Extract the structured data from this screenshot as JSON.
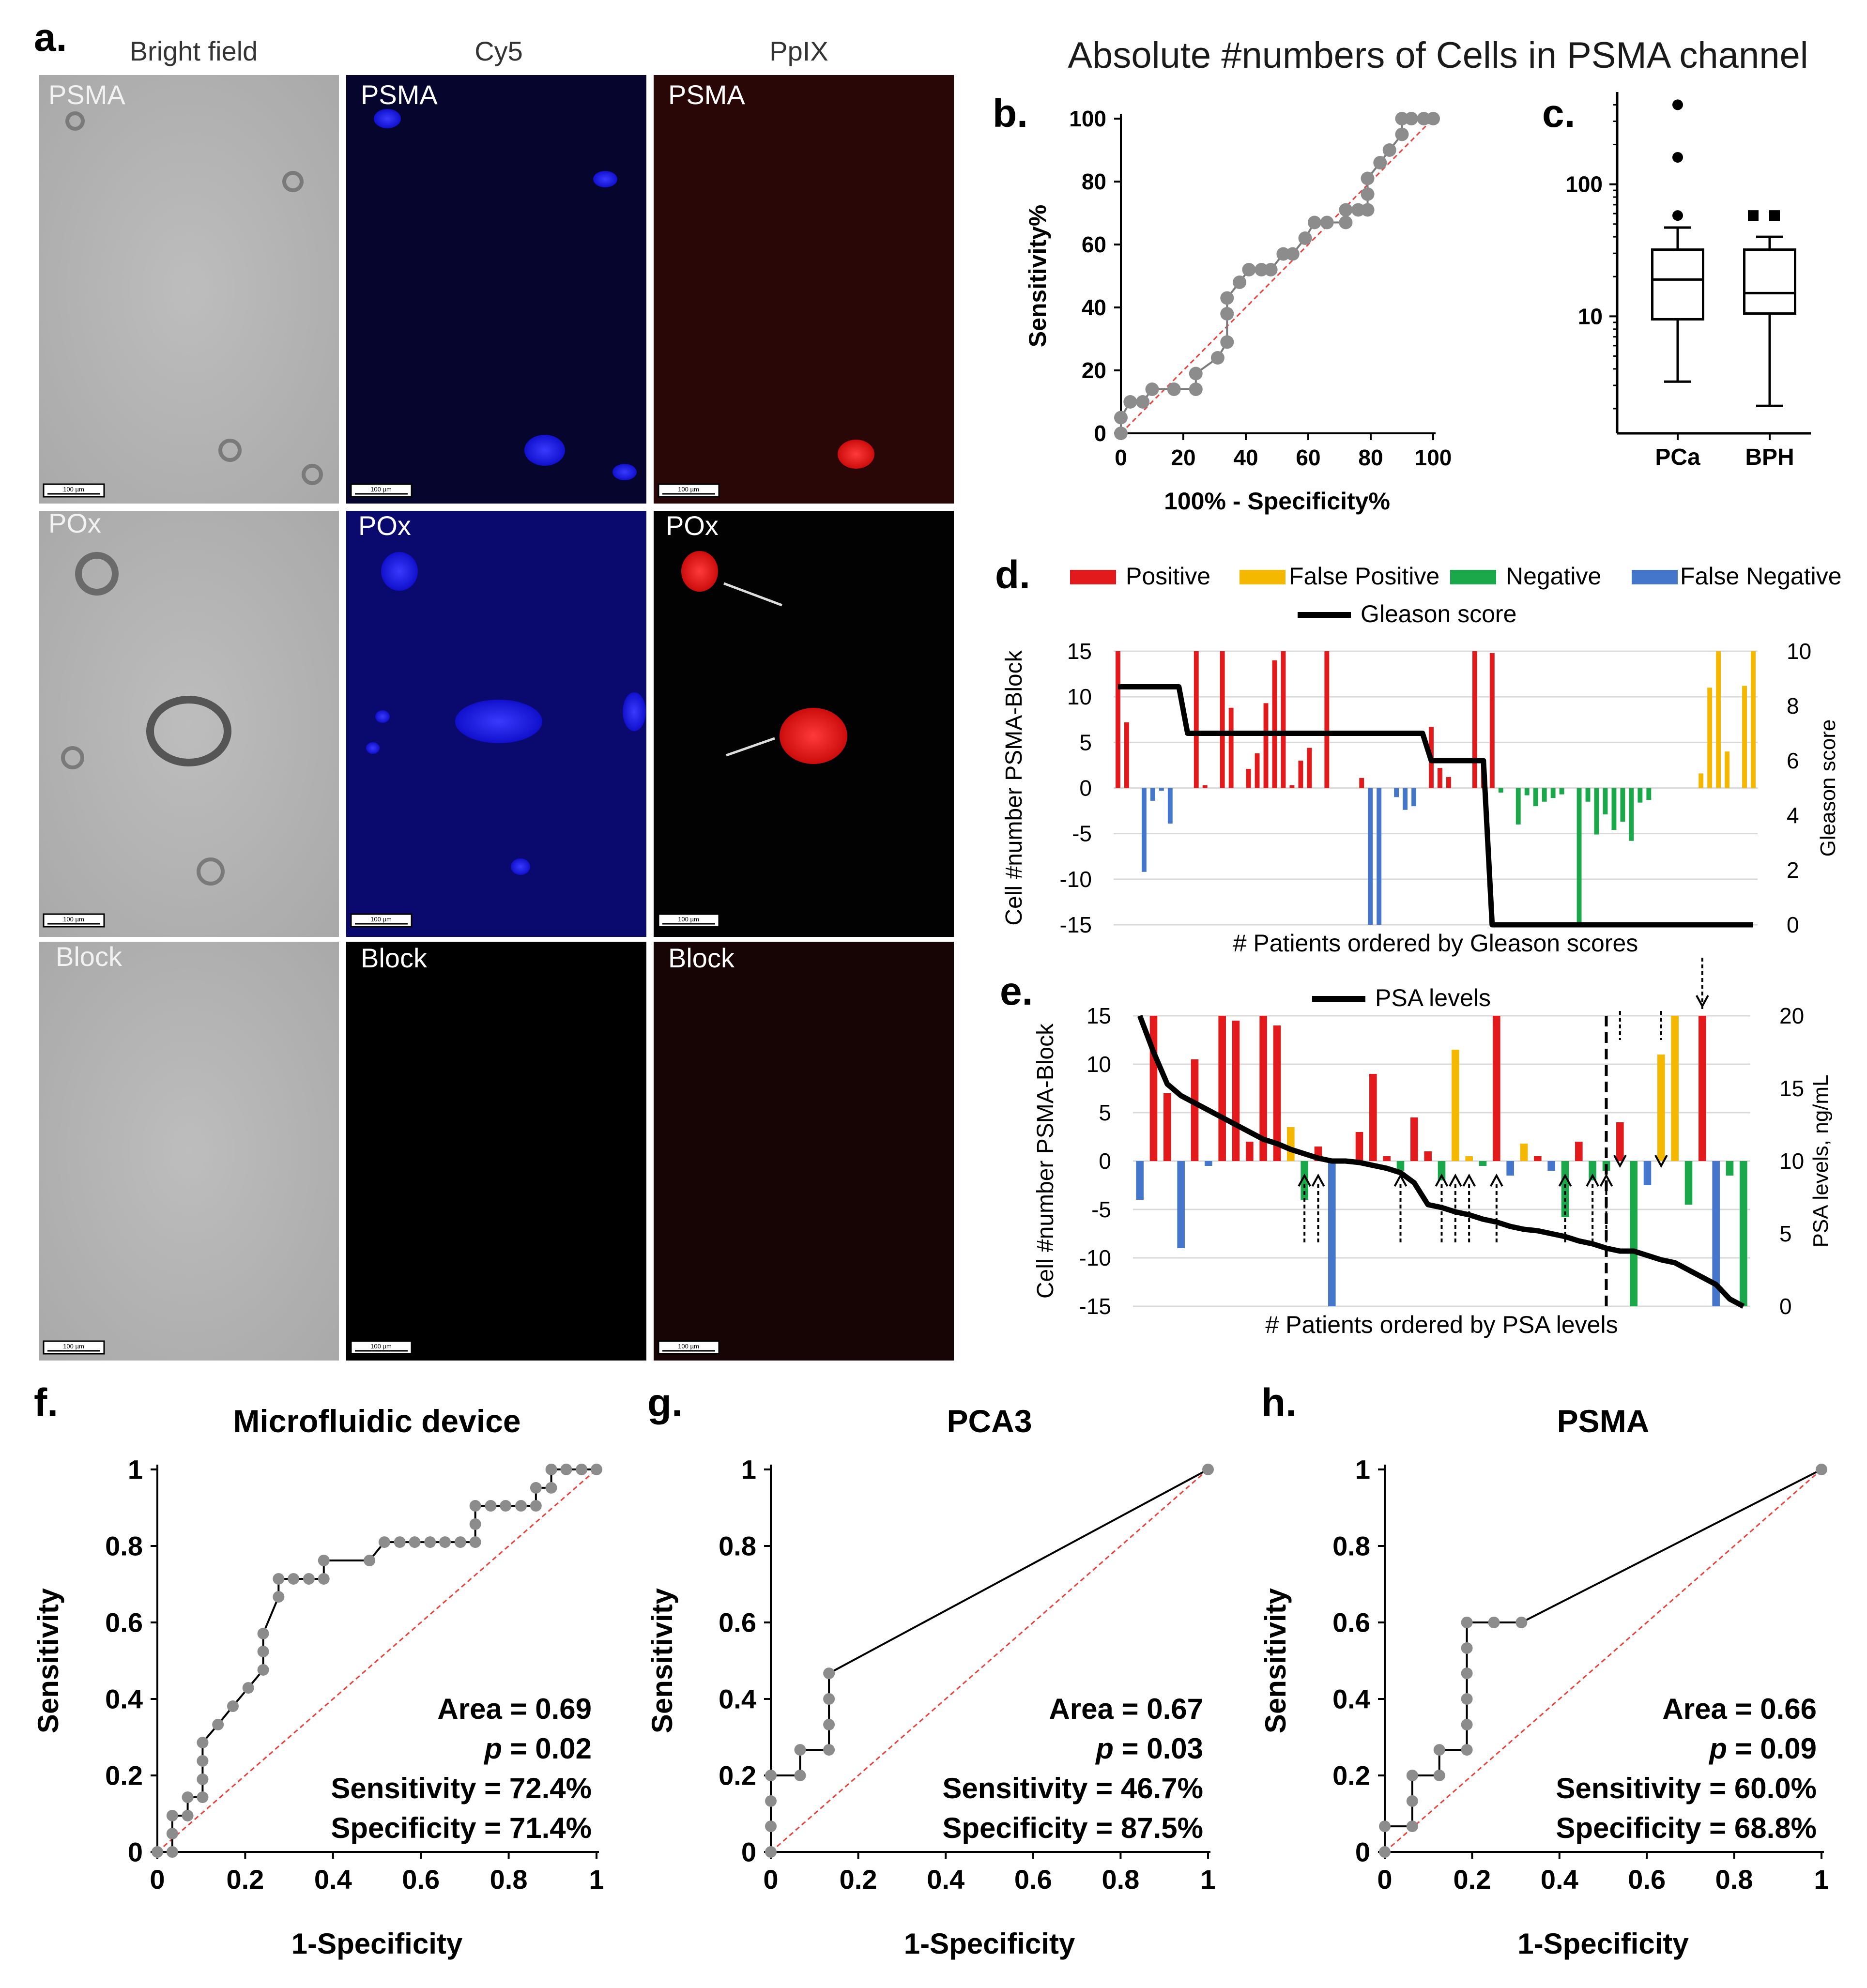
{
  "colors": {
    "positive": "#e31a1c",
    "false_positive": "#f5b800",
    "negative": "#1aa84a",
    "false_negative": "#4477cc",
    "line": "#000000",
    "ref": "#e8433d",
    "marker": "#8c8c8c",
    "cy5": "#1a1aff",
    "ppix": "#ff2020"
  },
  "panel_a": {
    "letter": "a.",
    "columns": [
      "Bright field",
      "Cy5",
      "PpIX"
    ],
    "rows": [
      "PSMA",
      "POx",
      "Block"
    ],
    "scale_bar": "100 µm"
  },
  "top_title": "Absolute #numbers of Cells in PSMA channel",
  "legend": {
    "positive": "Positive",
    "false_positive": "False Positive",
    "negative": "Negative",
    "false_negative": "False Negative",
    "gleason": "Gleason score",
    "psa": "PSA levels"
  },
  "chart_data": [
    {
      "id": "b",
      "letter": "b.",
      "type": "line",
      "xlabel": "100% - Specificity%",
      "ylabel": "Sensitivity%",
      "xlim": [
        0,
        100
      ],
      "ylim": [
        0,
        100
      ],
      "xticks": [
        "0",
        "20",
        "40",
        "60",
        "80",
        "100"
      ],
      "yticks": [
        "0",
        "20",
        "40",
        "60",
        "80",
        "100"
      ],
      "points": [
        [
          0,
          0
        ],
        [
          0,
          5
        ],
        [
          3,
          10
        ],
        [
          7,
          10
        ],
        [
          10,
          14
        ],
        [
          17,
          14
        ],
        [
          24,
          14
        ],
        [
          24,
          19
        ],
        [
          31,
          24
        ],
        [
          34,
          29
        ],
        [
          34,
          38
        ],
        [
          34,
          43
        ],
        [
          38,
          48
        ],
        [
          41,
          52
        ],
        [
          45,
          52
        ],
        [
          48,
          52
        ],
        [
          52,
          57
        ],
        [
          55,
          57
        ],
        [
          59,
          62
        ],
        [
          62,
          67
        ],
        [
          66,
          67
        ],
        [
          72,
          67
        ],
        [
          72,
          71
        ],
        [
          76,
          71
        ],
        [
          79,
          71
        ],
        [
          79,
          76
        ],
        [
          79,
          81
        ],
        [
          83,
          86
        ],
        [
          86,
          90
        ],
        [
          90,
          95
        ],
        [
          90,
          100
        ],
        [
          93,
          100
        ],
        [
          97,
          100
        ],
        [
          100,
          100
        ]
      ]
    },
    {
      "id": "c",
      "letter": "c.",
      "type": "boxplot",
      "yscale": "log",
      "ylim": [
        1.3,
        500
      ],
      "yticks": [
        "10",
        "100"
      ],
      "categories": [
        "PCa",
        "BPH"
      ],
      "boxes": [
        {
          "name": "PCa",
          "whisker_low": 3.2,
          "q1": 9.5,
          "median": 19,
          "q3": 32,
          "whisker_high": 47,
          "outliers": [
            58,
            160,
            400
          ]
        },
        {
          "name": "BPH",
          "whisker_low": 2.1,
          "q1": 10.5,
          "median": 15,
          "q3": 32,
          "whisker_high": 40,
          "outliers": [
            58,
            58
          ]
        }
      ]
    },
    {
      "id": "d",
      "letter": "d.",
      "type": "bar",
      "xlabel": "# Patients ordered by Gleason scores",
      "ylabel": "Cell #number PSMA-Block",
      "y2label": "Gleason score",
      "ylim": [
        -15,
        15
      ],
      "y2lim": [
        0,
        10
      ],
      "yticks": [
        "15",
        "10",
        "5",
        "0",
        "-5",
        "-10",
        "-15"
      ],
      "y2ticks": [
        "10",
        "8",
        "6",
        "4",
        "2",
        "0"
      ],
      "values": [
        15,
        7.2,
        0,
        -9.2,
        -1.4,
        -0.3,
        -3.9,
        0,
        0,
        15,
        0.3,
        0,
        15,
        8.8,
        0,
        2.1,
        3.8,
        9.3,
        14,
        15,
        0.3,
        3,
        4.4,
        0,
        15,
        0,
        0,
        0,
        1.1,
        -15,
        -15,
        0,
        -1,
        -2.4,
        -2,
        0,
        6.7,
        2.2,
        1.2,
        0,
        0,
        15,
        3,
        14.8,
        -0.5,
        0,
        -4,
        -0.8,
        -2,
        -1.5,
        -1.1,
        -0.7,
        0,
        -15,
        -1.5,
        -5.1,
        -2.9,
        -4.6,
        -3.7,
        -5.8,
        -1.6,
        -1.3,
        0,
        0,
        0,
        0,
        0,
        1.6,
        11,
        15,
        4,
        0,
        11.2,
        15
      ],
      "classes": [
        "P",
        "P",
        "N",
        "FN",
        "FN",
        "FN",
        "FN",
        "N",
        "N",
        "P",
        "P",
        "N",
        "P",
        "P",
        "N",
        "P",
        "P",
        "P",
        "P",
        "P",
        "P",
        "P",
        "P",
        "N",
        "P",
        "N",
        "N",
        "N",
        "P",
        "FN",
        "FN",
        "N",
        "FN",
        "FN",
        "FN",
        "N",
        "P",
        "P",
        "P",
        "N",
        "N",
        "P",
        "P",
        "P",
        "Ng",
        "N",
        "Ng",
        "Ng",
        "Ng",
        "Ng",
        "Ng",
        "Ng",
        "N",
        "Ng",
        "Ng",
        "Ng",
        "Ng",
        "Ng",
        "Ng",
        "Ng",
        "Ng",
        "Ng",
        "N",
        "N",
        "N",
        "N",
        "N",
        "FP",
        "FP",
        "FP",
        "FP",
        "N",
        "FP",
        "FP"
      ],
      "line": [
        8.7,
        8.7,
        8.7,
        8.7,
        8.7,
        8.7,
        8.7,
        8.7,
        7,
        7,
        7,
        7,
        7,
        7,
        7,
        7,
        7,
        7,
        7,
        7,
        7,
        7,
        7,
        7,
        7,
        7,
        7,
        7,
        7,
        7,
        7,
        7,
        7,
        7,
        7,
        7,
        6,
        6,
        6,
        6,
        6,
        6,
        6,
        0,
        0,
        0,
        0,
        0,
        0,
        0,
        0,
        0,
        0,
        0,
        0,
        0,
        0,
        0,
        0,
        0,
        0,
        0,
        0,
        0,
        0,
        0,
        0,
        0,
        0,
        0,
        0,
        0,
        0,
        0
      ]
    },
    {
      "id": "e",
      "letter": "e.",
      "type": "bar",
      "xlabel": "# Patients ordered by PSA levels",
      "ylabel": "Cell #number PSMA-Block",
      "y2label": "PSA levels, ng/mL",
      "ylim": [
        -15,
        15
      ],
      "y2lim": [
        0,
        20
      ],
      "yticks": [
        "15",
        "10",
        "5",
        "0",
        "-5",
        "-10",
        "-15"
      ],
      "y2ticks": [
        "20",
        "15",
        "10",
        "5",
        "0"
      ],
      "values": [
        -4,
        15,
        7,
        -9,
        10.5,
        -0.5,
        15,
        14.5,
        2,
        15,
        14,
        3.5,
        -4,
        1.5,
        -15,
        0,
        3,
        9,
        0.5,
        -1,
        4.5,
        1,
        -2,
        11.5,
        0.5,
        -0.5,
        15,
        -1.5,
        1.8,
        0.5,
        -1,
        -5.8,
        2,
        -2,
        -1,
        4,
        -15,
        -2.5,
        11,
        15,
        -4.5,
        15,
        -15,
        -1.5,
        -15
      ],
      "classes": [
        "FN",
        "P",
        "P",
        "FN",
        "P",
        "FN",
        "P",
        "P",
        "P",
        "P",
        "P",
        "FP",
        "Ng",
        "P",
        "FN",
        "N",
        "P",
        "P",
        "P",
        "Ng",
        "P",
        "P",
        "Ng",
        "FP",
        "FP",
        "Ng",
        "P",
        "FN",
        "FP",
        "P",
        "FN",
        "Ng",
        "P",
        "Ng",
        "Ng",
        "P",
        "Ng",
        "FN",
        "FP",
        "FP",
        "Ng",
        "P",
        "FN",
        "Ng",
        "Ng"
      ],
      "line": [
        20,
        17.5,
        15.3,
        14.5,
        14,
        13.5,
        13,
        12.5,
        12,
        11.5,
        11.2,
        10.8,
        10.5,
        10.2,
        10,
        10,
        9.9,
        9.7,
        9.5,
        9.2,
        8.5,
        7,
        6.8,
        6.5,
        6.3,
        6,
        5.8,
        5.5,
        5.3,
        5.2,
        5,
        4.8,
        4.5,
        4.3,
        4,
        3.8,
        3.8,
        3.5,
        3.2,
        3,
        2.5,
        2,
        1.5,
        0.5,
        0
      ],
      "arrows_up": [
        12,
        13,
        19,
        22,
        23,
        24,
        26,
        31,
        33,
        34
      ],
      "arrows_down": [
        35,
        38,
        41
      ],
      "cutoff_index": 34
    },
    {
      "id": "f",
      "letter": "f.",
      "type": "line",
      "title": "Microfluidic device",
      "xlabel": "1-Specificity",
      "ylabel": "Sensitivity",
      "xlim": [
        0,
        1
      ],
      "ylim": [
        0,
        1
      ],
      "xticks": [
        "0",
        "0.2",
        "0.4",
        "0.6",
        "0.8",
        "1"
      ],
      "yticks": [
        "0",
        "0.2",
        "0.4",
        "0.6",
        "0.8",
        "1"
      ],
      "stats": [
        "Area = 0.69",
        "p = 0.02",
        "Sensitivity = 72.4%",
        "Specificity = 71.4%"
      ],
      "points": [
        [
          0,
          0
        ],
        [
          0.034,
          0
        ],
        [
          0.034,
          0.048
        ],
        [
          0.034,
          0.095
        ],
        [
          0.069,
          0.095
        ],
        [
          0.069,
          0.143
        ],
        [
          0.103,
          0.143
        ],
        [
          0.103,
          0.19
        ],
        [
          0.103,
          0.238
        ],
        [
          0.103,
          0.286
        ],
        [
          0.138,
          0.333
        ],
        [
          0.172,
          0.381
        ],
        [
          0.207,
          0.429
        ],
        [
          0.241,
          0.476
        ],
        [
          0.241,
          0.524
        ],
        [
          0.241,
          0.571
        ],
        [
          0.276,
          0.667
        ],
        [
          0.276,
          0.714
        ],
        [
          0.31,
          0.714
        ],
        [
          0.345,
          0.714
        ],
        [
          0.379,
          0.714
        ],
        [
          0.379,
          0.762
        ],
        [
          0.483,
          0.762
        ],
        [
          0.517,
          0.81
        ],
        [
          0.552,
          0.81
        ],
        [
          0.586,
          0.81
        ],
        [
          0.621,
          0.81
        ],
        [
          0.655,
          0.81
        ],
        [
          0.69,
          0.81
        ],
        [
          0.724,
          0.81
        ],
        [
          0.724,
          0.857
        ],
        [
          0.724,
          0.905
        ],
        [
          0.759,
          0.905
        ],
        [
          0.793,
          0.905
        ],
        [
          0.828,
          0.905
        ],
        [
          0.862,
          0.905
        ],
        [
          0.862,
          0.952
        ],
        [
          0.897,
          0.952
        ],
        [
          0.897,
          1
        ],
        [
          0.931,
          1
        ],
        [
          0.966,
          1
        ],
        [
          1,
          1
        ]
      ]
    },
    {
      "id": "g",
      "letter": "g.",
      "type": "line",
      "title": "PCA3",
      "xlabel": "1-Specificity",
      "ylabel": "Sensitivity",
      "xlim": [
        0,
        1
      ],
      "ylim": [
        0,
        1
      ],
      "xticks": [
        "0",
        "0.2",
        "0.4",
        "0.6",
        "0.8",
        "1"
      ],
      "yticks": [
        "0",
        "0.2",
        "0.4",
        "0.6",
        "0.8",
        "1"
      ],
      "stats": [
        "Area = 0.67",
        "p = 0.03",
        "Sensitivity = 46.7%",
        "Specificity = 87.5%"
      ],
      "points": [
        [
          0,
          0
        ],
        [
          0,
          0.067
        ],
        [
          0,
          0.133
        ],
        [
          0,
          0.2
        ],
        [
          0.067,
          0.2
        ],
        [
          0.067,
          0.267
        ],
        [
          0.133,
          0.267
        ],
        [
          0.133,
          0.333
        ],
        [
          0.133,
          0.4
        ],
        [
          0.133,
          0.467
        ],
        [
          1,
          1
        ]
      ]
    },
    {
      "id": "h",
      "letter": "h.",
      "type": "line",
      "title": "PSMA",
      "xlabel": "1-Specificity",
      "ylabel": "Sensitivity",
      "xlim": [
        0,
        1
      ],
      "ylim": [
        0,
        1
      ],
      "xticks": [
        "0",
        "0.2",
        "0.4",
        "0.6",
        "0.8",
        "1"
      ],
      "yticks": [
        "0",
        "0.2",
        "0.4",
        "0.6",
        "0.8",
        "1"
      ],
      "stats": [
        "Area = 0.66",
        "p = 0.09",
        "Sensitivity = 60.0%",
        "Specificity = 68.8%"
      ],
      "points": [
        [
          0,
          0
        ],
        [
          0,
          0.067
        ],
        [
          0.063,
          0.067
        ],
        [
          0.063,
          0.133
        ],
        [
          0.063,
          0.2
        ],
        [
          0.125,
          0.2
        ],
        [
          0.125,
          0.267
        ],
        [
          0.188,
          0.267
        ],
        [
          0.188,
          0.333
        ],
        [
          0.188,
          0.4
        ],
        [
          0.188,
          0.467
        ],
        [
          0.188,
          0.533
        ],
        [
          0.188,
          0.6
        ],
        [
          0.25,
          0.6
        ],
        [
          0.313,
          0.6
        ],
        [
          1,
          1
        ]
      ]
    }
  ]
}
